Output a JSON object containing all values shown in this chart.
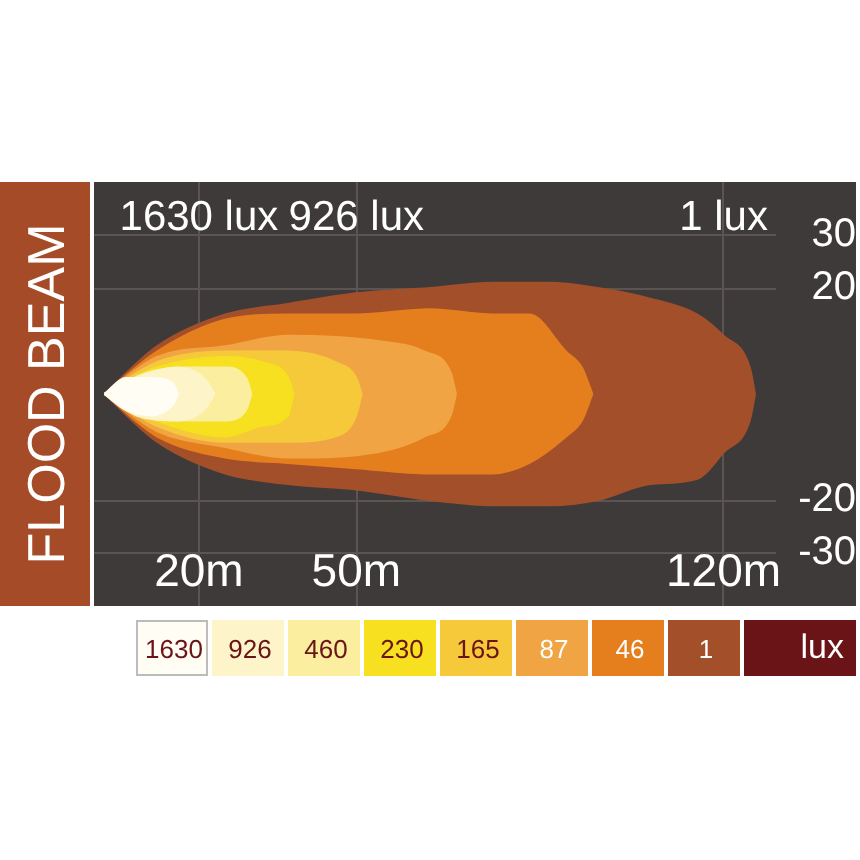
{
  "chart_data": {
    "type": "area",
    "title": "FLOOD BEAM",
    "series": [
      {
        "name": "1630",
        "color": "#fffdf4",
        "x": [
          2,
          6,
          11,
          15,
          16
        ],
        "values": [
          0,
          3,
          3,
          2,
          0
        ]
      },
      {
        "color": "#fffdf4",
        "x": [
          2,
          6,
          11,
          15,
          16
        ],
        "values": [
          0,
          -3,
          -4,
          -2,
          0
        ]
      },
      {
        "name": "926",
        "color": "#fdf5c9",
        "x": [
          2,
          8,
          16,
          21,
          23
        ],
        "values": [
          0,
          3,
          5,
          3,
          0
        ]
      },
      {
        "color": "#fdf5c9",
        "x": [
          2,
          8,
          16,
          21,
          23
        ],
        "values": [
          0,
          -4,
          -5,
          -3,
          0
        ]
      },
      {
        "name": "460",
        "color": "#fbee9e",
        "x": [
          2,
          10,
          18,
          25,
          29,
          30
        ],
        "values": [
          0,
          4,
          5,
          5,
          3,
          0
        ]
      },
      {
        "color": "#fbee9e",
        "x": [
          2,
          10,
          18,
          25,
          29,
          30
        ],
        "values": [
          0,
          -4,
          -5,
          -5,
          -3,
          0
        ]
      },
      {
        "name": "230",
        "color": "#f6e01f",
        "x": [
          2,
          12,
          25,
          32,
          37,
          38
        ],
        "values": [
          0,
          5,
          7,
          6,
          3,
          0
        ]
      },
      {
        "color": "#f6e01f",
        "x": [
          2,
          12,
          25,
          32,
          37,
          38
        ],
        "values": [
          0,
          -5,
          -8,
          -6,
          -4,
          0
        ]
      },
      {
        "name": "165",
        "color": "#f5c93a",
        "x": [
          2,
          12,
          25,
          37,
          46,
          50,
          51
        ],
        "values": [
          0,
          6,
          8,
          8,
          6,
          3,
          0
        ]
      },
      {
        "color": "#f5c93a",
        "x": [
          2,
          12,
          25,
          37,
          46,
          50,
          51
        ],
        "values": [
          0,
          -6,
          -9,
          -9,
          -8,
          -4,
          0
        ]
      },
      {
        "name": "87",
        "color": "#f1a444",
        "x": [
          2,
          12,
          25,
          37,
          54,
          63,
          68,
          69
        ],
        "values": [
          0,
          7,
          9,
          11,
          10,
          8,
          4,
          0
        ]
      },
      {
        "color": "#f1a444",
        "x": [
          2,
          12,
          25,
          37,
          54,
          63,
          68,
          69
        ],
        "values": [
          0,
          -7,
          -10,
          -12,
          -11,
          -8,
          -4,
          0
        ]
      },
      {
        "name": "46",
        "color": "#e57f1e",
        "x": [
          2,
          12,
          25,
          37,
          50,
          64,
          76,
          83,
          90,
          93,
          95
        ],
        "values": [
          0,
          8,
          14,
          15,
          15,
          16,
          15,
          15,
          8,
          5,
          0
        ]
      },
      {
        "color": "#e57f1e",
        "x": [
          2,
          12,
          25,
          37,
          50,
          64,
          76,
          83,
          90,
          93,
          95
        ],
        "values": [
          0,
          -8,
          -12,
          -13,
          -14,
          -15,
          -15,
          -13,
          -8,
          -5,
          0
        ]
      },
      {
        "name": "1",
        "color": "#a3502a",
        "x": [
          2,
          12,
          25,
          37,
          50,
          64,
          76,
          87,
          96,
          106,
          115,
          120,
          125,
          126
        ],
        "values": [
          0,
          9,
          15,
          17,
          19,
          20,
          21,
          21,
          20,
          18,
          15,
          11,
          5,
          0
        ]
      },
      {
        "color": "#a3502a",
        "x": [
          2,
          12,
          25,
          37,
          50,
          64,
          76,
          87,
          96,
          106,
          115,
          120,
          125,
          126
        ],
        "values": [
          0,
          -9,
          -15,
          -17,
          -18,
          -20,
          -21,
          -21,
          -20,
          -17,
          -16,
          -11,
          -5,
          0
        ]
      }
    ],
    "xlim": [
      0,
      130
    ],
    "xticks": [
      {
        "value": 20,
        "label": "20m"
      },
      {
        "value": 50,
        "label": "50m"
      },
      {
        "value": 120,
        "label": "120m"
      }
    ],
    "ylim": [
      -40,
      40
    ],
    "yticks": [
      -30,
      -20,
      20,
      30
    ],
    "grid": true,
    "legend": "bottom",
    "legend_title": "lux",
    "annotations": [
      "1630 lux",
      "926 lux",
      "1 lux"
    ]
  }
}
